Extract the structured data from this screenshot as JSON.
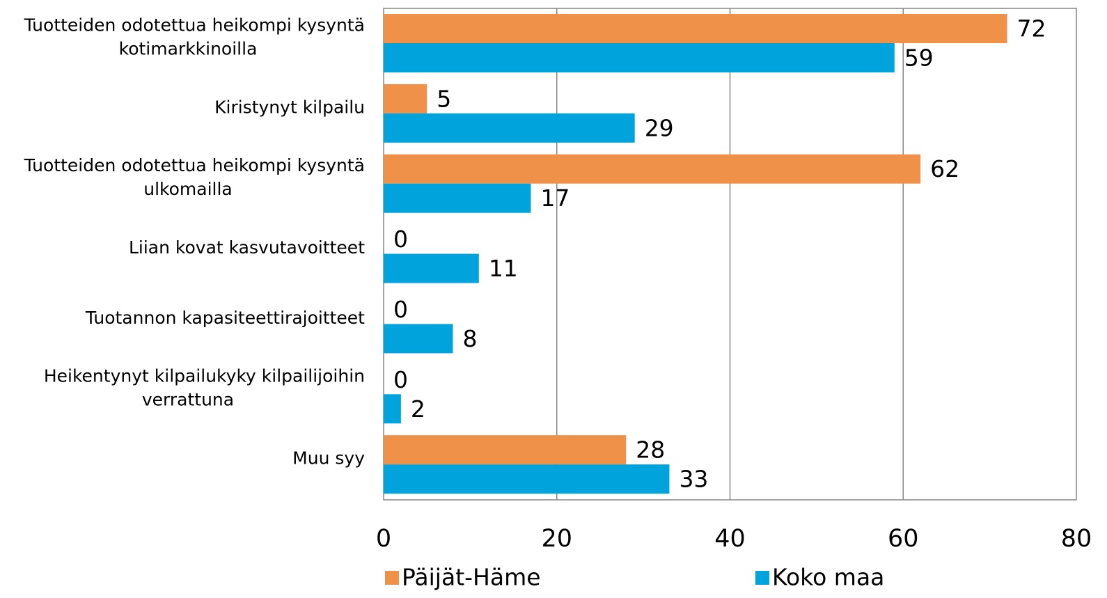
{
  "chart_data": {
    "type": "hbar",
    "categories": [
      "Tuotteiden odotettua heikompi kysyntä kotimarkkinoilla",
      "Kiristynyt kilpailu",
      "Tuotteiden odotettua heikompi kysyntä ulkomailla",
      "Liian kovat kasvutavoitteet",
      "Tuotannon kapasiteettirajoitteet",
      "Heikentynyt kilpailukyky kilpailijoihin verrattuna",
      "Muu syy"
    ],
    "series": [
      {
        "name": "Päijät-Häme",
        "color": "#f0914a",
        "values": [
          72,
          5,
          62,
          0,
          0,
          0,
          28
        ]
      },
      {
        "name": "Koko maa",
        "color": "#00a3dc",
        "values": [
          59,
          29,
          17,
          11,
          8,
          2,
          33
        ]
      }
    ],
    "xlim": [
      0,
      80
    ],
    "xticks": [
      0,
      20,
      40,
      60,
      80
    ],
    "grid": true
  }
}
